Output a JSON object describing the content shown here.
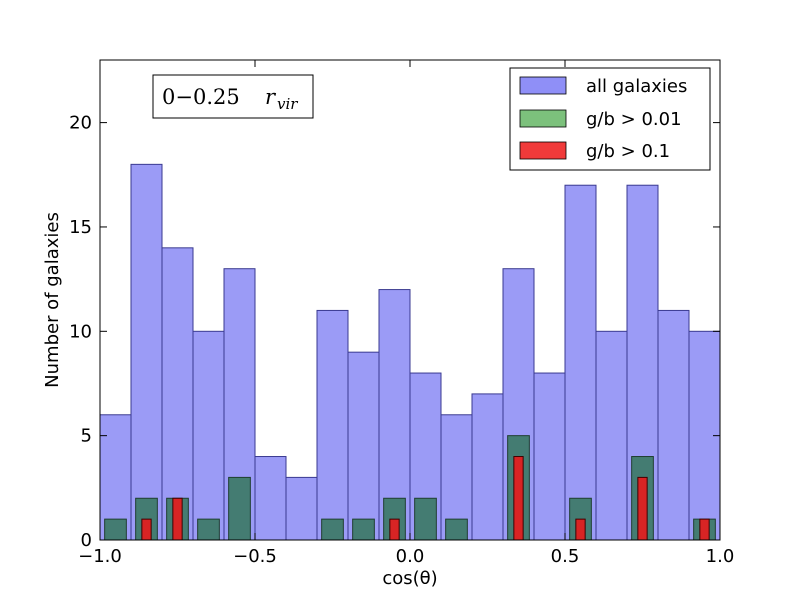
{
  "chart_data": {
    "type": "bar",
    "title": "",
    "xlabel": "cos(θ)",
    "ylabel": "Number of galaxies",
    "xlim": [
      -1.0,
      1.0
    ],
    "ylim": [
      0,
      23
    ],
    "grid": false,
    "legend_position": "top-right",
    "annotation": {
      "range": "0−0.25",
      "symbol": "r",
      "subscript": "vir"
    },
    "x_ticks": [
      {
        "value": -1.0,
        "label": "−1.0"
      },
      {
        "value": -0.5,
        "label": "−0.5"
      },
      {
        "value": 0.0,
        "label": "0.0"
      },
      {
        "value": 0.5,
        "label": "0.5"
      },
      {
        "value": 1.0,
        "label": "1.0"
      }
    ],
    "y_ticks": [
      {
        "value": 0,
        "label": "0"
      },
      {
        "value": 5,
        "label": "5"
      },
      {
        "value": 10,
        "label": "10"
      },
      {
        "value": 15,
        "label": "15"
      },
      {
        "value": 20,
        "label": "20"
      }
    ],
    "bin_edges": [
      -1.0,
      -0.9,
      -0.8,
      -0.7,
      -0.6,
      -0.5,
      -0.4,
      -0.3,
      -0.2,
      -0.1,
      0.0,
      0.1,
      0.2,
      0.3,
      0.4,
      0.5,
      0.6,
      0.7,
      0.8,
      0.9,
      1.0
    ],
    "series": [
      {
        "name": "all galaxies",
        "color": "#8a8af5",
        "edge": "#3a3a90",
        "opacity": 0.85,
        "width_fraction": 1.0,
        "values": [
          6,
          18,
          14,
          10,
          13,
          4,
          3,
          11,
          9,
          12,
          8,
          6,
          7,
          13,
          8,
          17,
          10,
          17,
          11,
          10
        ]
      },
      {
        "name": "g/b > 0.01",
        "color": "#3f7a6a",
        "edge": "#1f3f30",
        "opacity": 0.95,
        "width_fraction": 0.7,
        "values": [
          1,
          2,
          2,
          1,
          3,
          0,
          0,
          1,
          1,
          2,
          2,
          1,
          0,
          5,
          0,
          2,
          0,
          4,
          0,
          1
        ]
      },
      {
        "name": "g/b > 0.1",
        "color": "#e02020",
        "edge": "#400000",
        "opacity": 0.95,
        "width_fraction": 0.3,
        "values": [
          0,
          1,
          2,
          0,
          0,
          0,
          0,
          0,
          0,
          1,
          0,
          0,
          0,
          4,
          0,
          1,
          0,
          3,
          0,
          1
        ]
      }
    ],
    "legend_swatches": [
      "#8f8ff7",
      "#7cc17c",
      "#f03a3a"
    ]
  }
}
